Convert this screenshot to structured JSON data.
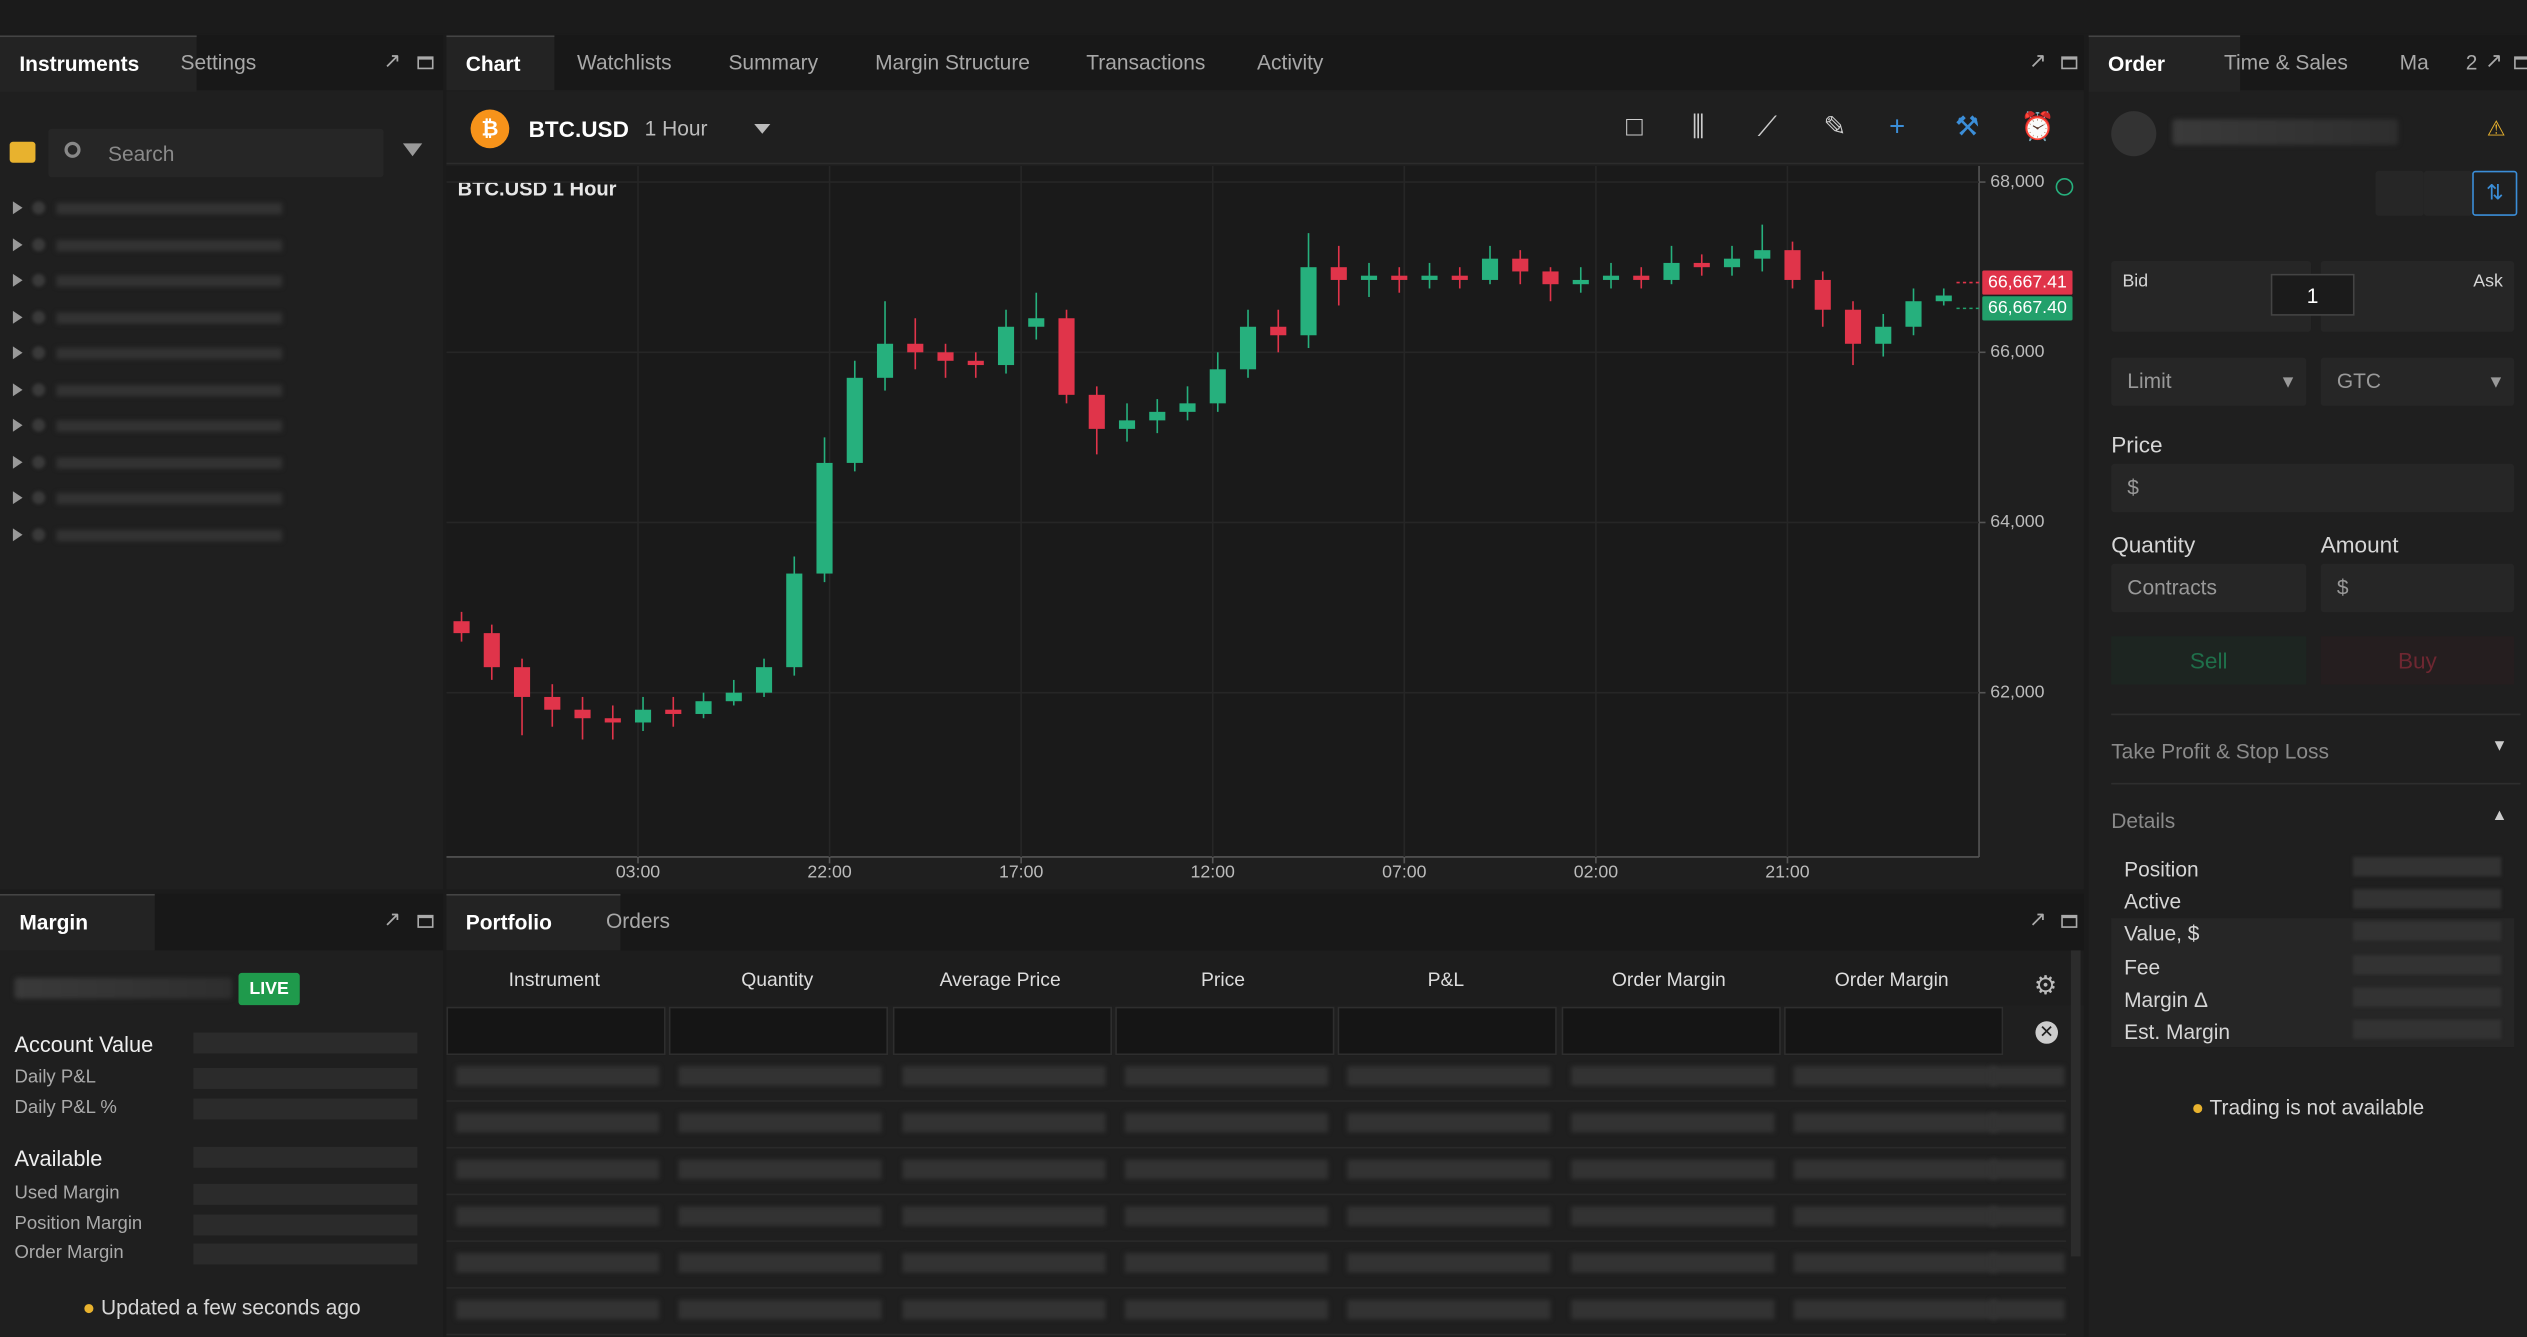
{
  "left_panel": {
    "tabs": [
      "Instruments",
      "Settings"
    ],
    "search_placeholder": "Search"
  },
  "center_panel": {
    "tabs": [
      "Chart",
      "Watchlists",
      "Summary",
      "Margin Structure",
      "Transactions",
      "Activity"
    ],
    "symbol": "BTC.USD",
    "interval": "1 Hour"
  },
  "chart_data": {
    "type": "candlestick",
    "title": "BTC.USD 1 Hour",
    "x": [
      1.5,
      4.5,
      7.5,
      10.5,
      13.5,
      16.5,
      19.5,
      22.5,
      25.5,
      28.5,
      31.5,
      34.5,
      37.5,
      40.5,
      43.5,
      46.5,
      49.5,
      52.5,
      55.5,
      58.5,
      61.5,
      64.5,
      67.5,
      70.5,
      73.5,
      76.5,
      79.5,
      82.5,
      85.5,
      88.5,
      91.5,
      94.5,
      97.5,
      100.5,
      103.5,
      106.5,
      109.5,
      112.5,
      115.5,
      118.5,
      121.5,
      124.5,
      127.5,
      130.5,
      133.5,
      136.5,
      139.5,
      142.5,
      145.5,
      148.5
    ],
    "open": [
      62840,
      62700,
      62300,
      61950,
      61800,
      61700,
      61650,
      61800,
      61750,
      61900,
      62000,
      62300,
      63400,
      64700,
      65700,
      66100,
      66000,
      65900,
      65850,
      66300,
      66400,
      65500,
      65100,
      65200,
      65300,
      65400,
      65800,
      66300,
      66200,
      67000,
      66850,
      66900,
      66850,
      66900,
      66850,
      67100,
      66950,
      66800,
      66850,
      66900,
      66850,
      67050,
      67000,
      67100,
      67200,
      66850,
      66500,
      66100,
      66300,
      66600
    ],
    "high": [
      62950,
      62800,
      62400,
      62100,
      61950,
      61850,
      61950,
      61950,
      62000,
      62150,
      62400,
      63600,
      65000,
      65900,
      66600,
      66400,
      66100,
      66000,
      66500,
      66700,
      66500,
      65600,
      65400,
      65450,
      65600,
      66000,
      66500,
      66500,
      67400,
      67250,
      67050,
      67000,
      67050,
      67000,
      67250,
      67200,
      67000,
      67000,
      67050,
      67000,
      67250,
      67150,
      67250,
      67500,
      67300,
      66950,
      66600,
      66450,
      66750,
      66750
    ],
    "low": [
      62600,
      62150,
      61500,
      61600,
      61450,
      61450,
      61550,
      61600,
      61700,
      61850,
      61950,
      62200,
      63300,
      64600,
      65550,
      65800,
      65700,
      65700,
      65750,
      66150,
      65400,
      64800,
      64950,
      65050,
      65200,
      65300,
      65700,
      66000,
      66050,
      66550,
      66650,
      66700,
      66750,
      66750,
      66800,
      66800,
      66600,
      66700,
      66750,
      66750,
      66800,
      66900,
      66900,
      66950,
      66750,
      66300,
      65850,
      65950,
      66200,
      66550
    ],
    "close": [
      62700,
      62300,
      61950,
      61800,
      61700,
      61650,
      61800,
      61750,
      61900,
      62000,
      62300,
      63400,
      64700,
      65700,
      66100,
      66000,
      65900,
      65850,
      66300,
      66400,
      65500,
      65100,
      65200,
      65300,
      65400,
      65800,
      66300,
      66200,
      67000,
      66850,
      66900,
      66850,
      66900,
      66850,
      67100,
      66950,
      66800,
      66850,
      66900,
      66850,
      67050,
      67000,
      67100,
      67200,
      66850,
      66500,
      66100,
      66300,
      66600,
      66667
    ],
    "xlim": [
      0,
      152
    ],
    "ylim": [
      60070,
      68190
    ],
    "xticks": [
      {
        "value": 19,
        "label": "03:00"
      },
      {
        "value": 38,
        "label": "22:00"
      },
      {
        "value": 57,
        "label": "17:00"
      },
      {
        "value": 76,
        "label": "12:00"
      },
      {
        "value": 95,
        "label": "07:00"
      },
      {
        "value": 114,
        "label": "02:00"
      },
      {
        "value": 133,
        "label": "21:00"
      }
    ],
    "yticks": [
      {
        "value": 62000,
        "label": "62,000"
      },
      {
        "value": 64000,
        "label": "64,000"
      },
      {
        "value": 66000,
        "label": "66,000"
      },
      {
        "value": 68000,
        "label": "68,000"
      }
    ],
    "price_tags": [
      {
        "value": 66667.41,
        "label": "66,667.41",
        "color": "#e0344a"
      },
      {
        "value": 66667.4,
        "label": "66,667.40",
        "color": "#22a06b"
      }
    ],
    "up_color": "#26b07d",
    "down_color": "#e0344a",
    "grid": true
  },
  "order_panel": {
    "tabs": [
      "Order",
      "Time & Sales",
      "Ma"
    ],
    "tab_count": 2,
    "bid_label": "Bid",
    "quantity_value": 1,
    "ask_label": "Ask",
    "order_type": "Limit",
    "time_in_force": "GTC",
    "price_label": "Price",
    "price_placeholder": "$",
    "quantity_label": "Quantity",
    "quantity_placeholder": "Contracts",
    "amount_label": "Amount",
    "amount_placeholder": "$",
    "sell": "Sell",
    "buy": "Buy",
    "tp_sl": "Take Profit & Stop Loss",
    "details_label": "Details",
    "details": [
      "Position",
      "Active",
      "Value, $",
      "Fee",
      "Margin Δ",
      "Est. Margin"
    ],
    "notice": "Trading is not available"
  },
  "margin_panel": {
    "tab": "Margin",
    "status": "LIVE",
    "account_value": "Account Value",
    "account_rows": [
      "Daily P&L",
      "Daily P&L %"
    ],
    "available": "Available",
    "available_rows": [
      "Used Margin",
      "Position Margin",
      "Order Margin"
    ],
    "updated": "Updated a few seconds ago"
  },
  "portfolio_panel": {
    "tabs": [
      "Portfolio",
      "Orders"
    ],
    "columns": [
      "Instrument",
      "Quantity",
      "Average Price",
      "Price",
      "P&L",
      "Order Margin",
      "Order Margin"
    ]
  }
}
